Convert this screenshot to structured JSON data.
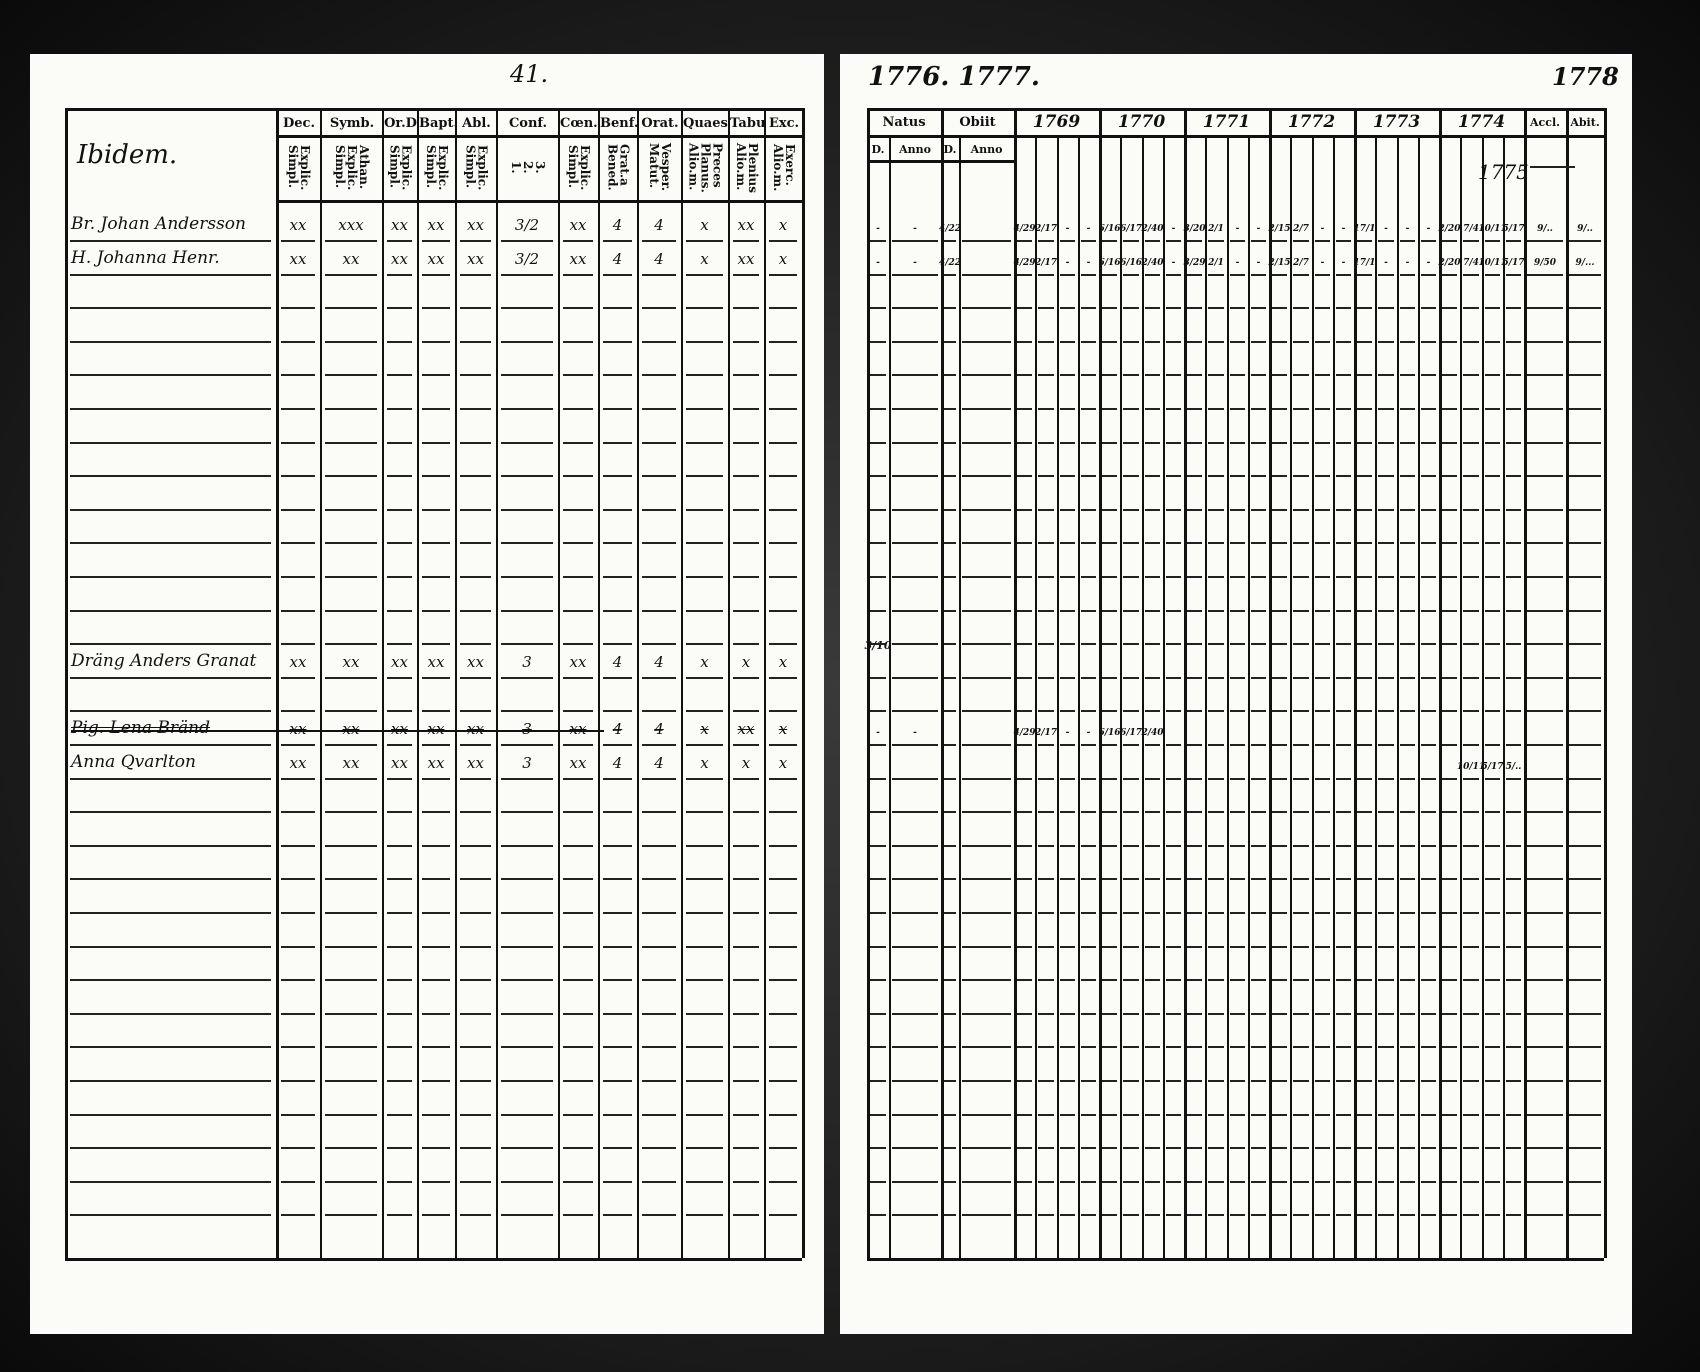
{
  "left_page": {
    "page_number": "41.",
    "place_heading": "Ibidem.",
    "columns": [
      {
        "top": "Dec.",
        "sub": "Explic.\nSimpl."
      },
      {
        "top": "Symb.",
        "sub": "Athan.\nExplic.\nSimpl."
      },
      {
        "top": "Or.D",
        "sub": "Explic.\nSimpl."
      },
      {
        "top": "Bapt.",
        "sub": "Explic.\nSimpl."
      },
      {
        "top": "Abl.",
        "sub": "Explic.\nSimpl."
      },
      {
        "top": "Conf.",
        "sub": "3.\n2.\n1."
      },
      {
        "top": "Cœn.D",
        "sub": "Explic.\nSimpl."
      },
      {
        "top": "Benf.",
        "sub": "Grat.a\nBened."
      },
      {
        "top": "Orat.",
        "sub": "Vesper.\nMatut."
      },
      {
        "top": "Quaest.",
        "sub": "Preces\nPlanus.\nAlio.m."
      },
      {
        "top": "Tabul.",
        "sub": "Plenius\nAlio.m."
      },
      {
        "top": "Exc.",
        "sub": "Exerc.\nAlio.m."
      }
    ],
    "rows": [
      {
        "line": 0,
        "name": "Br. Johan Andersson",
        "struck": false,
        "marks": [
          "xx",
          "xxx",
          "xx",
          "xx",
          "xx",
          "3/2",
          "xx",
          "4",
          "4",
          "x",
          "xx",
          "x"
        ]
      },
      {
        "line": 1,
        "name": "H. Johanna Henr.",
        "struck": false,
        "marks": [
          "xx",
          "xx",
          "xx",
          "xx",
          "xx",
          "3/2",
          "xx",
          "4",
          "4",
          "x",
          "xx",
          "x"
        ]
      },
      {
        "line": 13,
        "name": "Dräng Anders Granat",
        "struck": false,
        "marks": [
          "xx",
          "xx",
          "xx",
          "xx",
          "xx",
          "3",
          "xx",
          "4",
          "4",
          "x",
          "x",
          "x"
        ]
      },
      {
        "line": 15,
        "name": "Pig. Lena Bränd",
        "struck": true,
        "marks": [
          "xx",
          "xx",
          "xx",
          "xx",
          "xx",
          "3",
          "xx",
          "4",
          "4",
          "x",
          "xx",
          "x"
        ]
      },
      {
        "line": 16,
        "name": "Anna Qvarlton",
        "struck": false,
        "marks": [
          "xx",
          "xx",
          "xx",
          "xx",
          "xx",
          "3",
          "xx",
          "4",
          "4",
          "x",
          "x",
          "x"
        ]
      }
    ]
  },
  "right_page": {
    "years_heading": "1776. 1777.",
    "corner_note": "1778",
    "margin_note": "1775",
    "side_note": "3/10",
    "natus": {
      "label": "Natus",
      "d": "D.",
      "anno": "Anno"
    },
    "obiit": {
      "label": "Obiit",
      "d": "D.",
      "anno": "Anno"
    },
    "years": [
      "1769",
      "1770",
      "1771",
      "1772",
      "1773",
      "1774"
    ],
    "accl": "Accl.",
    "abit": "Abit.",
    "rows": [
      {
        "line": 0,
        "cells": [
          "-",
          "-",
          "4/22",
          "",
          "4/29",
          "2/17",
          "-",
          "-",
          "6/16",
          "6/17",
          "2/40",
          "-",
          "3/20",
          "2/1",
          "-",
          "-",
          "2/15",
          "2/7",
          "-",
          "-",
          "17/1",
          "-",
          "-",
          "-",
          "2/20",
          "7/4",
          "10/11",
          "5/17",
          "9/..",
          "9/.."
        ]
      },
      {
        "line": 1,
        "cells": [
          "-",
          "-",
          "4/22",
          "",
          "4/29",
          "2/17",
          "-",
          "-",
          "6/16",
          "6/16",
          "2/40",
          "-",
          "3/29",
          "2/1",
          "-",
          "-",
          "2/15",
          "2/7",
          "-",
          "-",
          "17/1",
          "-",
          "-",
          "-",
          "2/20",
          "7/4",
          "10/11",
          "5/17",
          "9/50",
          "9/..."
        ]
      },
      {
        "line": 15,
        "cells": [
          "-",
          "-",
          "",
          "",
          "4/29",
          "2/17",
          "-",
          "-",
          "6/16",
          "6/17",
          "2/40",
          "",
          "",
          "",
          "",
          "",
          "",
          "",
          "",
          "",
          "",
          "",
          "",
          "",
          "",
          "",
          "",
          "",
          "",
          ""
        ]
      },
      {
        "line": 16,
        "cells": [
          "",
          "",
          "",
          "",
          "",
          "",
          "",
          "",
          "",
          "",
          "",
          "",
          "",
          "",
          "",
          "",
          "",
          "",
          "",
          "",
          "",
          "",
          "",
          "",
          "",
          "10/11",
          "5/17",
          "5/..",
          "",
          ""
        ]
      }
    ]
  }
}
